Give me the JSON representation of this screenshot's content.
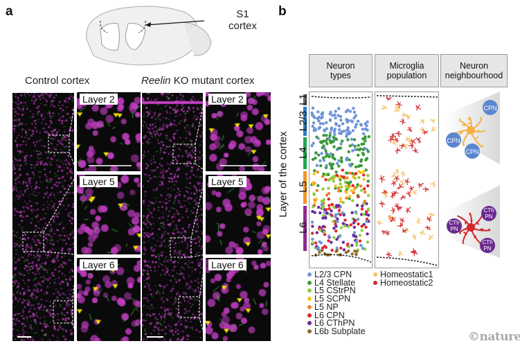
{
  "panel_a": {
    "label": "a",
    "brain_label": "S1\ncortex",
    "brain_label_line1": "S1",
    "brain_label_line2": "cortex",
    "control_title": "Control cortex",
    "ko_title_italic": "Reelin",
    "ko_title_rest": " KO mutant cortex",
    "insets": [
      "Layer 2",
      "Layer 5",
      "Layer 6"
    ],
    "colors": {
      "nuclei": "#c040c0",
      "microglia": "#40c040",
      "arrowheads": "#f2e000"
    }
  },
  "panel_b": {
    "label": "b",
    "headers": [
      "Neuron\ntypes",
      "Microglia\npopulation",
      "Neuron\nneighbourhood"
    ],
    "axis_label": "Layer of the cortex",
    "layers": [
      {
        "name": "L1",
        "color": "#666666"
      },
      {
        "name": "L2/3",
        "color": "#2f7cc0"
      },
      {
        "name": "L4",
        "color": "#1ea850"
      },
      {
        "name": "L5",
        "color": "#f0962a"
      },
      {
        "name": "L6",
        "color": "#8e2a8e"
      }
    ],
    "neuron_legend": [
      {
        "label": "L2/3 CPN",
        "color": "#6f95d6"
      },
      {
        "label": "L4 Stellate",
        "color": "#3a9a3a"
      },
      {
        "label": "L5 CStrPN",
        "color": "#8ccf3c"
      },
      {
        "label": "L5 SCPN",
        "color": "#f8c21c"
      },
      {
        "label": "L5 NP",
        "color": "#f0822a"
      },
      {
        "label": "L6 CPN",
        "color": "#e3262a"
      },
      {
        "label": "L6 CThPN",
        "color": "#6a2a9a"
      },
      {
        "label": "L6b Subplate",
        "color": "#8a6a2a"
      }
    ],
    "microglia_legend": [
      {
        "label": "Homeostatic1",
        "color": "#f6c265"
      },
      {
        "label": "Homeostatic2",
        "color": "#d4272a"
      }
    ],
    "neighbourhood_top": {
      "cell_color": "#f5b042",
      "neighbours": [
        "CPN",
        "CPN",
        "CPN"
      ],
      "neighbour_color": "#5b86cf"
    },
    "neighbourhood_bottom": {
      "cell_color": "#d4272a",
      "neighbours": [
        "CTh\nPN",
        "CTh\nPN",
        "CTh\nPN"
      ],
      "neighbour_color": "#6a2a8e"
    }
  },
  "credit": "©nature"
}
